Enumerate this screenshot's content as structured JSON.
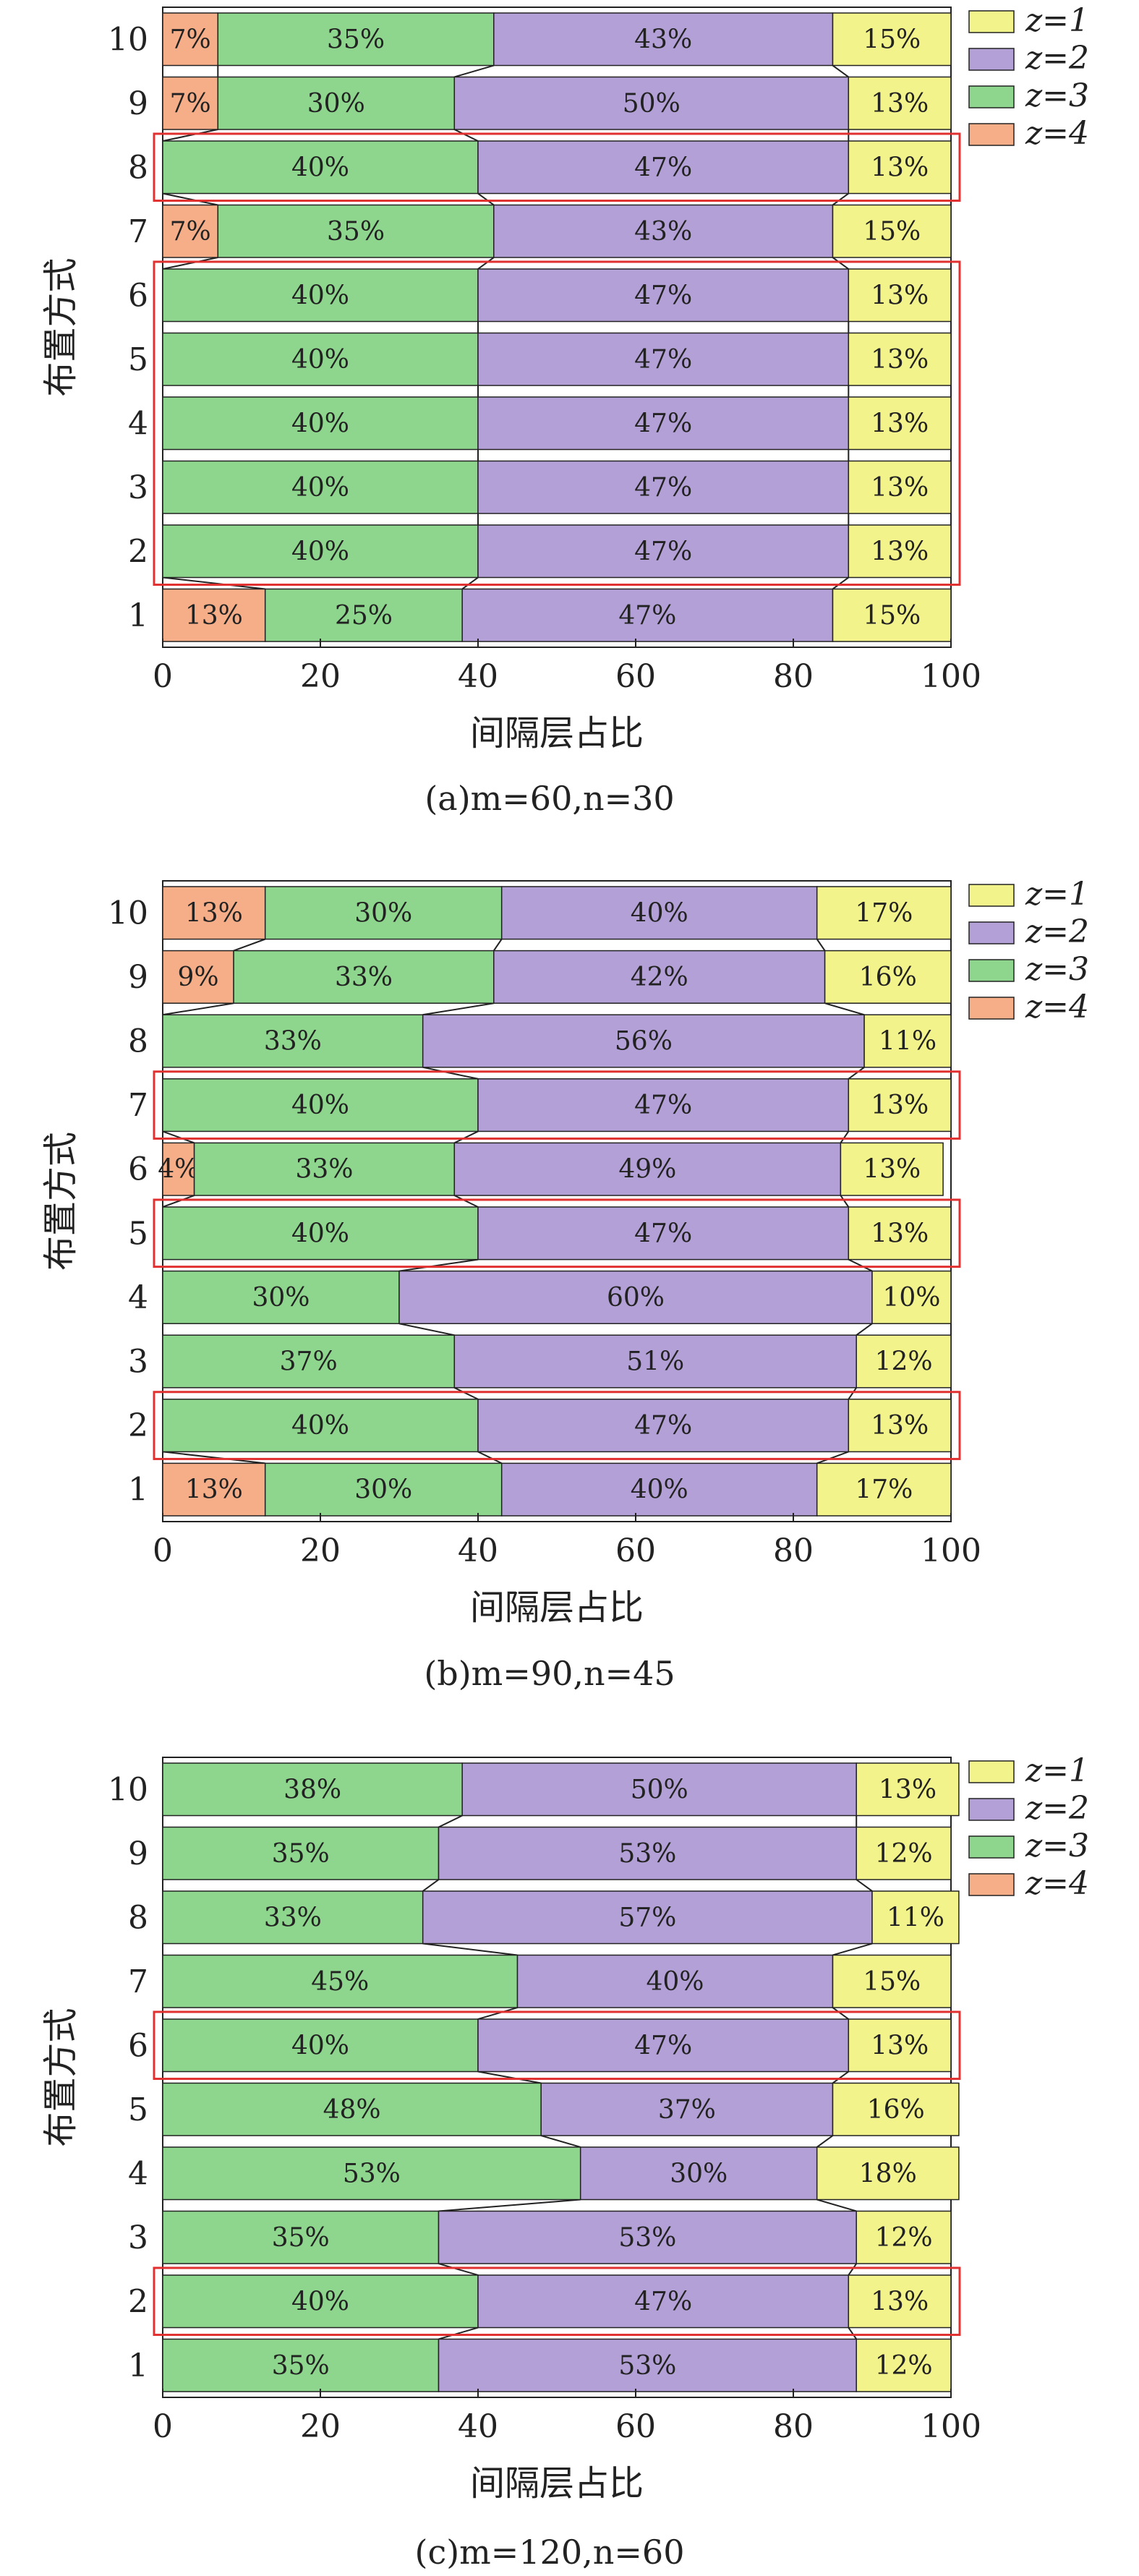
{
  "colors": {
    "z1": "#f3f38c",
    "z2": "#b3a0d6",
    "z3": "#8ed68e",
    "z4": "#f6ae88",
    "highlight": "#e03030",
    "connector": "#222222"
  },
  "legend": [
    "z=1",
    "z=2",
    "z=3",
    "z=4"
  ],
  "chart_data": [
    {
      "type": "bar",
      "orientation": "horizontal",
      "stacked": true,
      "caption": "(a)m=60,n=30",
      "xlabel": "间隔层占比",
      "ylabel": "布置方式",
      "xlim": [
        0,
        100
      ],
      "xticks": [
        "0",
        "20",
        "40",
        "60",
        "80",
        "100"
      ],
      "categories": [
        "1",
        "2",
        "3",
        "4",
        "5",
        "6",
        "7",
        "8",
        "9",
        "10"
      ],
      "series": [
        {
          "name": "z=4",
          "values": [
            13,
            0,
            0,
            0,
            0,
            0,
            7,
            0,
            7,
            7
          ]
        },
        {
          "name": "z=3",
          "values": [
            25,
            40,
            40,
            40,
            40,
            40,
            35,
            40,
            30,
            35
          ]
        },
        {
          "name": "z=2",
          "values": [
            47,
            47,
            47,
            47,
            47,
            47,
            43,
            47,
            50,
            43
          ]
        },
        {
          "name": "z=1",
          "values": [
            15,
            13,
            13,
            13,
            13,
            13,
            15,
            13,
            13,
            15
          ]
        }
      ],
      "data_labels": {
        "z=4": [
          "13%",
          "",
          "",
          "",
          "",
          "",
          "7%",
          "",
          "7%",
          "7%"
        ],
        "z=3": [
          "25%",
          "40%",
          "40%",
          "40%",
          "40%",
          "40%",
          "35%",
          "40%",
          "30%",
          "35%"
        ],
        "z=2": [
          "47%",
          "47%",
          "47%",
          "47%",
          "47%",
          "47%",
          "43%",
          "47%",
          "50%",
          "43%"
        ],
        "z=1": [
          "15%",
          "13%",
          "13%",
          "13%",
          "13%",
          "13%",
          "15%",
          "13%",
          "13%",
          "15%"
        ]
      },
      "highlight_groups": [
        [
          "2",
          "6"
        ],
        [
          "8",
          "8"
        ]
      ]
    },
    {
      "type": "bar",
      "orientation": "horizontal",
      "stacked": true,
      "caption": "(b)m=90,n=45",
      "xlabel": "间隔层占比",
      "ylabel": "布置方式",
      "xlim": [
        0,
        100
      ],
      "xticks": [
        "0",
        "20",
        "40",
        "60",
        "80",
        "100"
      ],
      "categories": [
        "1",
        "2",
        "3",
        "4",
        "5",
        "6",
        "7",
        "8",
        "9",
        "10"
      ],
      "series": [
        {
          "name": "z=4",
          "values": [
            13,
            0,
            0,
            0,
            0,
            4,
            0,
            0,
            9,
            13
          ]
        },
        {
          "name": "z=3",
          "values": [
            30,
            40,
            37,
            30,
            40,
            33,
            40,
            33,
            33,
            30
          ]
        },
        {
          "name": "z=2",
          "values": [
            40,
            47,
            51,
            60,
            47,
            49,
            47,
            56,
            42,
            40
          ]
        },
        {
          "name": "z=1",
          "values": [
            17,
            13,
            12,
            10,
            13,
            13,
            13,
            11,
            16,
            17
          ]
        }
      ],
      "data_labels": {
        "z=4": [
          "13%",
          "",
          "",
          "",
          "",
          "4%",
          "",
          "",
          "9%",
          "13%"
        ],
        "z=3": [
          "30%",
          "40%",
          "37%",
          "30%",
          "40%",
          "33%",
          "40%",
          "33%",
          "33%",
          "30%"
        ],
        "z=2": [
          "40%",
          "47%",
          "51%",
          "60%",
          "47%",
          "49%",
          "47%",
          "56%",
          "42%",
          "40%"
        ],
        "z=1": [
          "17%",
          "13%",
          "12%",
          "10%",
          "13%",
          "13%",
          "13%",
          "11%",
          "16%",
          "17%"
        ]
      },
      "highlight_groups": [
        [
          "2",
          "2"
        ],
        [
          "5",
          "5"
        ],
        [
          "7",
          "7"
        ]
      ]
    },
    {
      "type": "bar",
      "orientation": "horizontal",
      "stacked": true,
      "caption": "(c)m=120,n=60",
      "xlabel": "间隔层占比",
      "ylabel": "布置方式",
      "xlim": [
        0,
        100
      ],
      "xticks": [
        "0",
        "20",
        "40",
        "60",
        "80",
        "100"
      ],
      "categories": [
        "1",
        "2",
        "3",
        "4",
        "5",
        "6",
        "7",
        "8",
        "9",
        "10"
      ],
      "series": [
        {
          "name": "z=4",
          "values": [
            0,
            0,
            0,
            0,
            0,
            0,
            0,
            0,
            0,
            0
          ]
        },
        {
          "name": "z=3",
          "values": [
            35,
            40,
            35,
            53,
            48,
            40,
            45,
            33,
            35,
            38
          ]
        },
        {
          "name": "z=2",
          "values": [
            53,
            47,
            53,
            30,
            37,
            47,
            40,
            57,
            53,
            50
          ]
        },
        {
          "name": "z=1",
          "values": [
            12,
            13,
            12,
            18,
            16,
            13,
            15,
            11,
            12,
            13
          ]
        }
      ],
      "data_labels": {
        "z=4": [
          "",
          "",
          "",
          "",
          "",
          "",
          "",
          "",
          "",
          ""
        ],
        "z=3": [
          "35%",
          "40%",
          "35%",
          "53%",
          "48%",
          "40%",
          "45%",
          "33%",
          "35%",
          "38%"
        ],
        "z=2": [
          "53%",
          "47%",
          "53%",
          "30%",
          "37%",
          "47%",
          "40%",
          "57%",
          "53%",
          "50%"
        ],
        "z=1": [
          "12%",
          "13%",
          "12%",
          "18%",
          "16%",
          "13%",
          "15%",
          "11%",
          "12%",
          "13%"
        ]
      },
      "highlight_groups": [
        [
          "2",
          "2"
        ],
        [
          "6",
          "6"
        ]
      ]
    }
  ]
}
